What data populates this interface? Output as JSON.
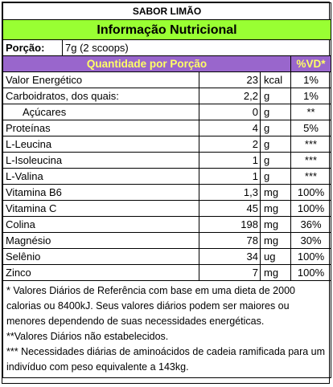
{
  "header": {
    "flavor": "SABOR LIMÃO",
    "title": "Informação Nutricional",
    "portion_label": "Porção:",
    "portion_value": "7g (2 scoops)",
    "col_quantity": "Quantidade por Porção",
    "col_vd": "%VD*"
  },
  "rows": [
    {
      "name": "Valor Energético",
      "amount": "23",
      "unit": "kcal",
      "vd": "1%"
    },
    {
      "name": "Carboidratos, dos quais:",
      "amount": "2,2",
      "unit": "g",
      "vd": "1%"
    },
    {
      "name": "Açúcares",
      "amount": "0",
      "unit": "g",
      "vd": "**"
    },
    {
      "name": "Proteínas",
      "amount": "4",
      "unit": "g",
      "vd": "5%"
    },
    {
      "name": "L-Leucina",
      "amount": "2",
      "unit": "g",
      "vd": "***"
    },
    {
      "name": "L-Isoleucina",
      "amount": "1",
      "unit": "g",
      "vd": "***"
    },
    {
      "name": "L-Valina",
      "amount": "1",
      "unit": "g",
      "vd": "***"
    },
    {
      "name": "Vitamina B6",
      "amount": "1,3",
      "unit": "mg",
      "vd": "100%"
    },
    {
      "name": "Vitamina C",
      "amount": "45",
      "unit": "mg",
      "vd": "100%"
    },
    {
      "name": "Colina",
      "amount": "198",
      "unit": "mg",
      "vd": "36%"
    },
    {
      "name": "Magnésio",
      "amount": "78",
      "unit": "mg",
      "vd": "30%"
    },
    {
      "name": "Selênio",
      "amount": "34",
      "unit": "ug",
      "vd": "100%"
    },
    {
      "name": "Zinco",
      "amount": "7",
      "unit": "mg",
      "vd": "100%"
    }
  ],
  "notes": {
    "note1": "* Valores Diários de Referência com base em uma dieta de 2000 calorias ou 8400kJ. Seus valores diários podem ser maiores ou menores dependendo de suas necessidades energéticas.",
    "note2": "**Valores Diários não estabelecidos.",
    "note3": "*** Necessidades diárias de aminoácidos de cadeia ramificada para um indivíduo com peso equivalente a 143kg."
  }
}
